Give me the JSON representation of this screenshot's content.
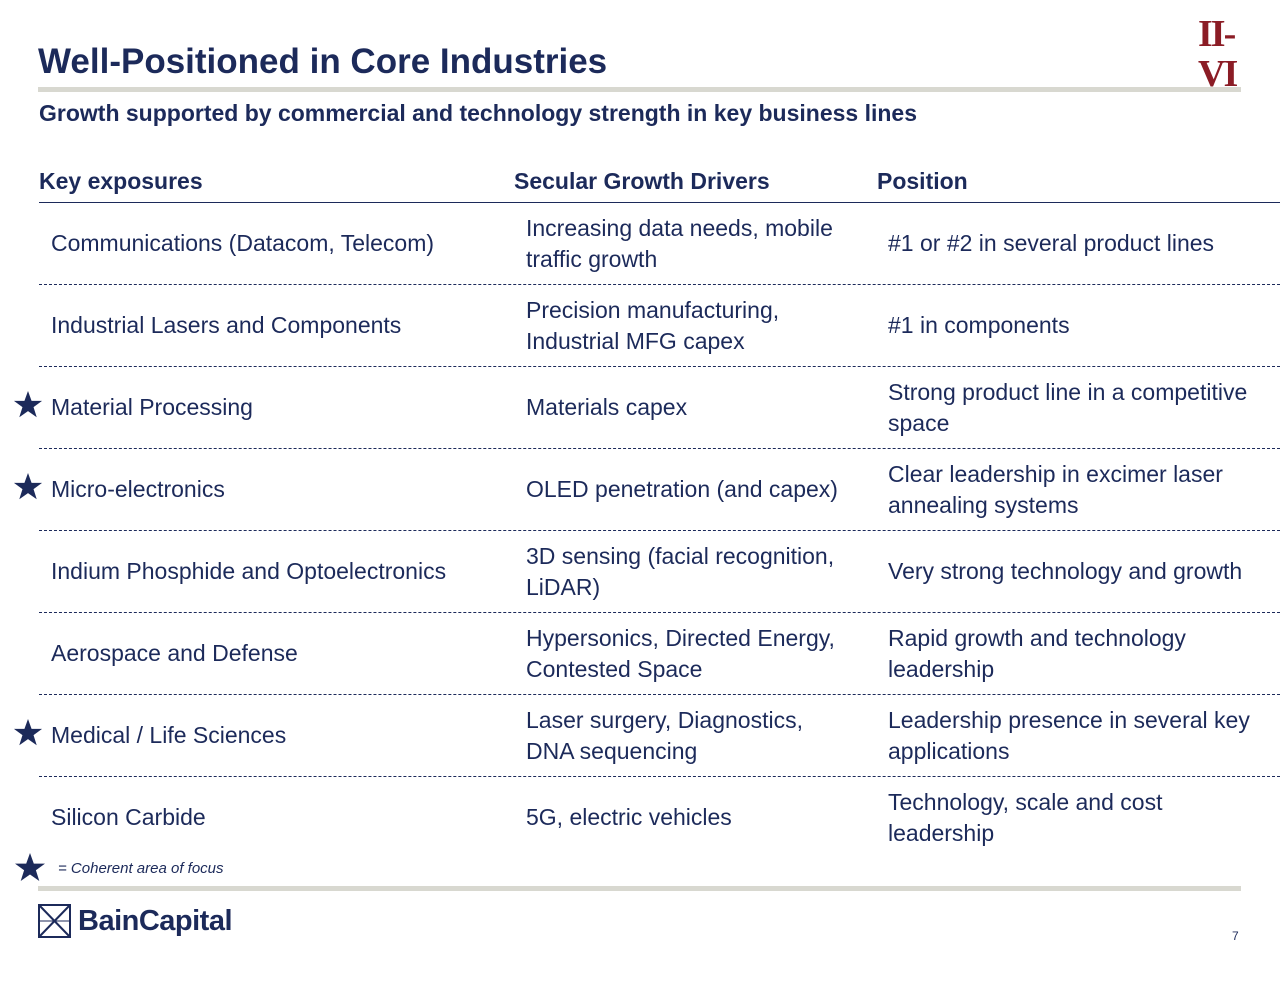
{
  "header": {
    "logo_text": "II-VI",
    "title": "Well-Positioned in Core Industries",
    "subtitle": "Growth supported by commercial and technology strength in key business lines"
  },
  "table": {
    "headers": [
      "Key exposures",
      "Secular Growth Drivers",
      "Position"
    ],
    "rows": [
      {
        "exposure": "Communications (Datacom, Telecom)",
        "drivers": "Increasing data needs, mobile traffic growth",
        "position": "#1 or #2 in several product lines",
        "starred": false
      },
      {
        "exposure": "Industrial Lasers and Components",
        "drivers": "Precision manufacturing, Industrial MFG capex",
        "position": "#1 in components",
        "starred": false
      },
      {
        "exposure": "Material Processing",
        "drivers": "Materials capex",
        "position": "Strong product line in a competitive space",
        "starred": true
      },
      {
        "exposure": "Micro-electronics",
        "drivers": "OLED penetration (and capex)",
        "position": "Clear leadership in excimer laser annealing systems",
        "starred": true
      },
      {
        "exposure": "Indium Phosphide and Optoelectronics",
        "drivers": "3D sensing (facial recognition, LiDAR)",
        "position": "Very strong technology and growth",
        "starred": false
      },
      {
        "exposure": "Aerospace and Defense",
        "drivers": "Hypersonics, Directed Energy, Contested Space",
        "position": "Rapid growth and technology leadership",
        "starred": false
      },
      {
        "exposure": "Medical / Life Sciences",
        "drivers": "Laser surgery, Diagnostics, DNA sequencing",
        "position": "Leadership presence in several key applications",
        "starred": true
      },
      {
        "exposure": "Silicon Carbide",
        "drivers": "5G, electric vehicles",
        "position": "Technology, scale and cost leadership",
        "starred": false
      }
    ]
  },
  "legend": {
    "text": "= Coherent area of focus"
  },
  "footer": {
    "logo_text": "BainCapital",
    "page_number": "7"
  },
  "colors": {
    "navy": "#1c2a5a",
    "brand_red": "#8b1c25",
    "rule_gray": "#d8d8d0"
  }
}
